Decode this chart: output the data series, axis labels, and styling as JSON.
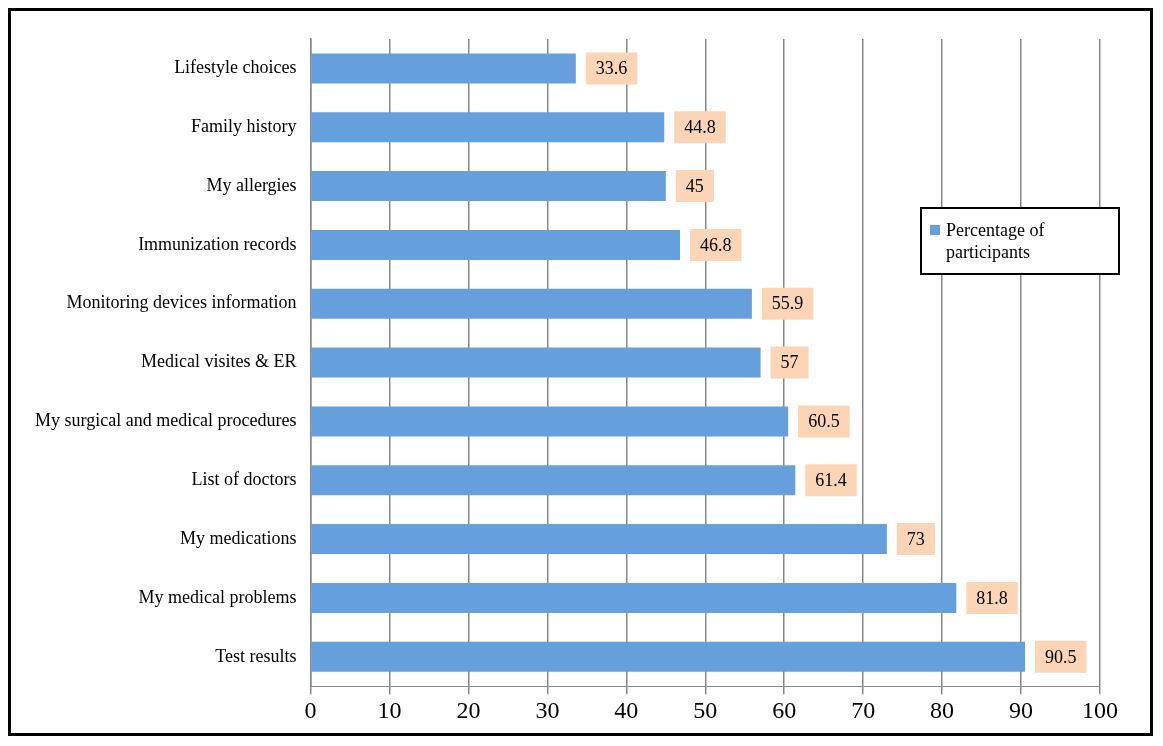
{
  "chart_data": {
    "type": "bar",
    "orientation": "horizontal",
    "categories": [
      "Lifestyle choices",
      "Family history",
      "My allergies",
      "Immunization records",
      "Monitoring devices information",
      "Medical visites & ER",
      "My surgical and medical procedures",
      "List of doctors",
      "My medications",
      "My medical problems",
      "Test results"
    ],
    "series": [
      {
        "name": "Percentage of participants",
        "color": "#659fdc",
        "values": [
          33.6,
          44.8,
          45,
          46.8,
          55.9,
          57,
          60.5,
          61.4,
          73,
          81.8,
          90.5
        ]
      }
    ],
    "xlim": [
      0,
      100
    ],
    "xticks": [
      0,
      10,
      20,
      30,
      40,
      50,
      60,
      70,
      80,
      90,
      100
    ],
    "grid": "x",
    "legend": "right",
    "data_labels": true
  }
}
